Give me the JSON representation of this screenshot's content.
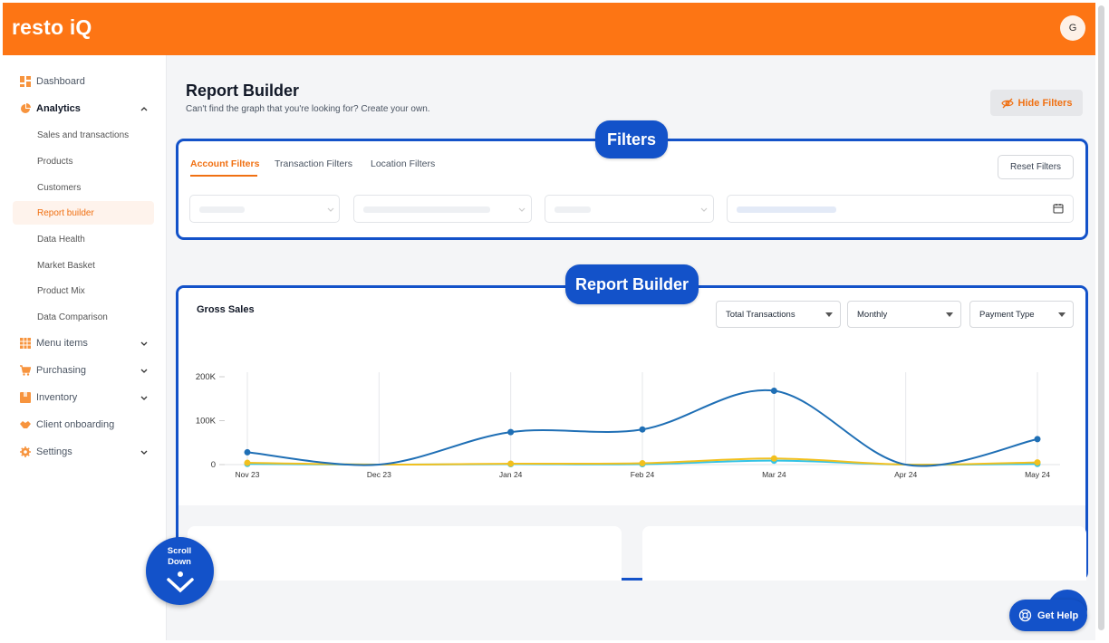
{
  "app": {
    "logo_text": "resto iQ",
    "user_initial": "G",
    "brand_color": "#fd7514",
    "annotation_color": "#1352c9"
  },
  "sidebar": {
    "items": [
      {
        "label": "Dashboard",
        "icon": "dashboard-icon"
      },
      {
        "label": "Analytics",
        "icon": "pie-chart-icon",
        "expanded": true
      },
      {
        "label": "Menu items",
        "icon": "grid-icon"
      },
      {
        "label": "Purchasing",
        "icon": "cart-icon"
      },
      {
        "label": "Inventory",
        "icon": "box-icon"
      },
      {
        "label": "Client onboarding",
        "icon": "handshake-icon"
      },
      {
        "label": "Settings",
        "icon": "gear-icon"
      }
    ],
    "analytics_sub": [
      {
        "label": "Sales and transactions"
      },
      {
        "label": "Products"
      },
      {
        "label": "Customers"
      },
      {
        "label": "Report builder",
        "active": true
      },
      {
        "label": "Data Health"
      },
      {
        "label": "Market Basket"
      },
      {
        "label": "Product Mix"
      },
      {
        "label": "Data Comparison"
      }
    ]
  },
  "page": {
    "title": "Report Builder",
    "subtitle": "Can't find the graph that you're looking for? Create your own.",
    "hide_filters_label": "Hide Filters"
  },
  "filters": {
    "callout_label": "Filters",
    "tabs": [
      {
        "label": "Account Filters",
        "active": true
      },
      {
        "label": "Transaction Filters"
      },
      {
        "label": "Location Filters"
      }
    ],
    "reset_label": "Reset Filters"
  },
  "report": {
    "callout_label": "Report Builder",
    "chart_title": "Gross Sales",
    "selects": [
      {
        "value": "Total Transactions"
      },
      {
        "value": "Monthly"
      },
      {
        "value": "Payment Type"
      }
    ]
  },
  "chart_data": {
    "type": "line",
    "title": "Gross Sales",
    "categories": [
      "Nov 23",
      "Dec 23",
      "Jan 24",
      "Feb 24",
      "Mar 24",
      "Apr 24",
      "May 24"
    ],
    "ylim": [
      0,
      200000
    ],
    "yticks": [
      "0",
      "100K",
      "200K"
    ],
    "grid": "vertical",
    "series": [
      {
        "color": "#1f6fb5",
        "values": [
          28000,
          0,
          74000,
          80000,
          168000,
          0,
          58000
        ]
      },
      {
        "color": "#f2c01e",
        "values": [
          4000,
          0,
          2000,
          3000,
          14000,
          0,
          5000
        ]
      },
      {
        "color": "#33c3e6",
        "values": [
          1500,
          0,
          1000,
          1000,
          9000,
          0,
          1500
        ]
      }
    ]
  },
  "scroll_down": {
    "label": "Scroll Down"
  },
  "help": {
    "label": "Get Help"
  }
}
